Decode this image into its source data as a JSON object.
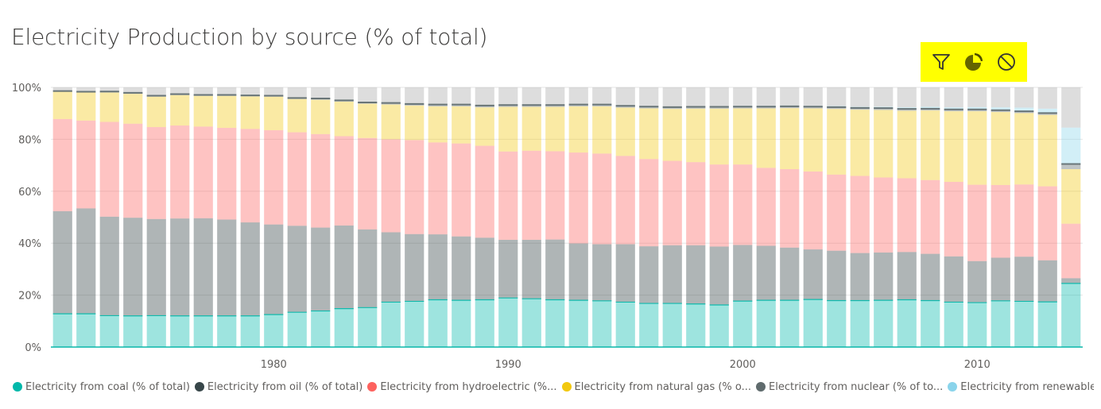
{
  "chart_data": {
    "type": "bar",
    "stacked": true,
    "title": "Electricity Production by source (% of total)",
    "x": [
      1971,
      1972,
      1973,
      1974,
      1975,
      1976,
      1977,
      1978,
      1979,
      1980,
      1981,
      1982,
      1983,
      1984,
      1985,
      1986,
      1987,
      1988,
      1989,
      1990,
      1991,
      1992,
      1993,
      1994,
      1995,
      1996,
      1997,
      1998,
      1999,
      2000,
      2001,
      2002,
      2003,
      2004,
      2005,
      2006,
      2007,
      2008,
      2009,
      2010,
      2011,
      2012,
      2013,
      2014
    ],
    "x_tick_labels": [
      "1980",
      "1990",
      "2000",
      "2010"
    ],
    "x_tick_values": [
      1980,
      1990,
      2000,
      2010
    ],
    "y_tick_labels": [
      "0%",
      "20%",
      "40%",
      "60%",
      "80%",
      "100%"
    ],
    "ylim": [
      0,
      100
    ],
    "grid": true,
    "legend_position": "bottom",
    "series": [
      {
        "name": "Electricity from coal (% of total)",
        "legend_label": "Electricity from coal (% of total)",
        "color": "#01b8aa",
        "values": [
          12.8,
          12.8,
          12.1,
          12.0,
          12.1,
          12.0,
          12.0,
          12.0,
          12.0,
          12.5,
          13.4,
          13.9,
          14.8,
          15.2,
          17.3,
          17.6,
          18.2,
          18.0,
          18.2,
          18.9,
          18.6,
          18.2,
          18.0,
          17.8,
          17.3,
          16.8,
          16.8,
          16.6,
          16.2,
          17.7,
          18.0,
          18.0,
          18.3,
          17.9,
          17.9,
          18.0,
          18.2,
          17.9,
          17.3,
          17.1,
          17.8,
          17.6,
          17.4,
          24.5
        ]
      },
      {
        "name": "Electricity from oil (% of total)",
        "legend_label": "Electricity from oil (% of total)",
        "color": "#374649",
        "values": [
          39.5,
          40.6,
          38.1,
          37.8,
          37.2,
          37.5,
          37.6,
          37.1,
          36.0,
          34.7,
          33.3,
          32.1,
          32.0,
          30.1,
          26.9,
          25.9,
          25.2,
          24.6,
          23.9,
          22.4,
          22.7,
          23.2,
          21.9,
          21.8,
          22.3,
          22.0,
          22.4,
          22.6,
          22.5,
          21.6,
          21.0,
          20.3,
          19.3,
          19.2,
          18.3,
          18.4,
          18.4,
          18.0,
          17.6,
          16.0,
          16.6,
          17.2,
          16.0,
          2.0
        ]
      },
      {
        "name": "Electricity from hydroelectric (% of total)",
        "legend_label": "Electricity from hydroelectric (%...",
        "color": "#fd625e",
        "values": [
          35.5,
          33.8,
          36.5,
          36.2,
          35.4,
          35.8,
          35.3,
          35.3,
          36.0,
          36.3,
          36.0,
          36.0,
          34.4,
          35.2,
          35.8,
          36.2,
          35.4,
          35.8,
          35.4,
          34.0,
          34.3,
          34.0,
          35.0,
          34.9,
          34.0,
          33.6,
          32.5,
          32.0,
          31.6,
          31.0,
          30.0,
          30.2,
          30.0,
          29.3,
          29.7,
          28.9,
          28.4,
          28.4,
          28.7,
          29.4,
          28.0,
          27.8,
          28.5,
          21.0
        ]
      },
      {
        "name": "Electricity from natural gas (% of total)",
        "legend_label": "Electricity from natural gas (% o...",
        "color": "#f2c80f",
        "values": [
          10.5,
          10.8,
          11.3,
          11.5,
          11.7,
          11.7,
          11.8,
          12.3,
          12.5,
          12.9,
          12.8,
          13.2,
          13.3,
          13.2,
          13.4,
          13.3,
          13.9,
          14.3,
          14.8,
          17.2,
          16.9,
          17.1,
          17.8,
          18.2,
          18.6,
          19.5,
          20.0,
          20.6,
          21.5,
          21.6,
          22.9,
          23.5,
          24.3,
          25.3,
          25.5,
          26.0,
          26.0,
          26.8,
          27.2,
          28.3,
          28.1,
          27.5,
          27.5,
          21.0
        ]
      },
      {
        "name": "Electricity from nuclear (% of total)",
        "legend_label": "Electricity from nuclear (% of to...",
        "color": "#5f6b6d",
        "values": [
          0.3,
          0.3,
          0.4,
          0.4,
          0.4,
          0.4,
          0.4,
          0.4,
          0.4,
          0.4,
          0.4,
          0.5,
          0.5,
          0.5,
          0.6,
          0.6,
          0.7,
          0.7,
          0.7,
          0.7,
          0.7,
          0.7,
          0.7,
          0.7,
          0.7,
          0.7,
          0.7,
          0.7,
          0.7,
          0.7,
          0.7,
          0.7,
          0.7,
          0.7,
          0.7,
          0.7,
          0.7,
          0.7,
          0.7,
          0.7,
          0.7,
          0.7,
          0.7,
          2.0
        ]
      },
      {
        "name": "Electricity from renewables (% of total)",
        "legend_label": "Electricity from renewables (% o...",
        "color": "#8ad4eb",
        "values": [
          0.2,
          0.2,
          0.2,
          0.2,
          0.2,
          0.2,
          0.2,
          0.2,
          0.2,
          0.2,
          0.2,
          0.2,
          0.2,
          0.2,
          0.2,
          0.2,
          0.2,
          0.2,
          0.2,
          0.2,
          0.2,
          0.2,
          0.2,
          0.2,
          0.2,
          0.2,
          0.2,
          0.2,
          0.2,
          0.3,
          0.3,
          0.3,
          0.3,
          0.4,
          0.4,
          0.5,
          0.6,
          0.7,
          0.8,
          0.9,
          1.1,
          1.4,
          1.7,
          14.0
        ]
      }
    ],
    "remainder_color": "#b3b3b3"
  },
  "toolbar": {
    "filter_icon": "filter-icon",
    "focus_icon": "pie-icon",
    "disable_icon": "no-entry-icon",
    "highlight_color": "#ffff00"
  }
}
